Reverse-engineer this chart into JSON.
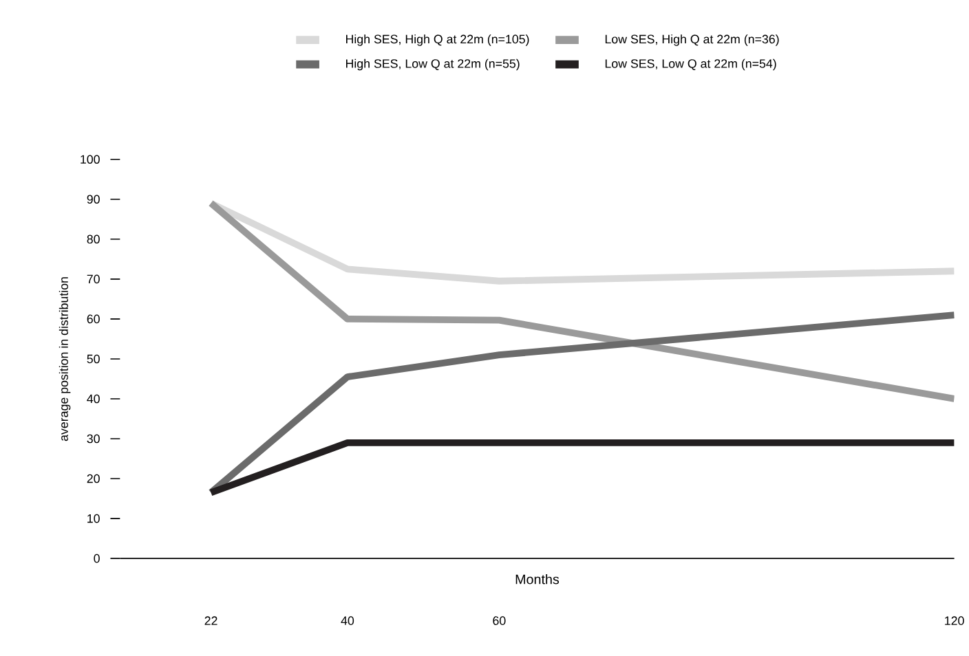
{
  "chart_data": {
    "type": "line",
    "xlabel": "Months",
    "ylabel": "average position in distribution",
    "x": [
      22,
      40,
      60,
      120
    ],
    "xlim": [
      10,
      120
    ],
    "xticks": [
      22,
      40,
      60,
      120
    ],
    "ylim": [
      0,
      100
    ],
    "yticks": [
      0,
      10,
      20,
      30,
      40,
      50,
      60,
      70,
      80,
      90,
      100
    ],
    "legend": "top",
    "grid": false,
    "series": [
      {
        "name": "High SES, High Q at 22m (n=105)",
        "color": "#d9d9d9",
        "values": [
          89,
          72.5,
          69.5,
          72
        ]
      },
      {
        "name": "Low SES, High Q at 22m (n=36)",
        "color": "#9a9a9a",
        "values": [
          89,
          60,
          59.7,
          40
        ]
      },
      {
        "name": "High SES, Low Q at 22m (n=55)",
        "color": "#6b6b6b",
        "values": [
          16.5,
          45.5,
          51,
          61
        ]
      },
      {
        "name": "Low SES, Low Q at 22m (n=54)",
        "color": "#231f20",
        "values": [
          16.5,
          29,
          29,
          29
        ]
      }
    ]
  }
}
